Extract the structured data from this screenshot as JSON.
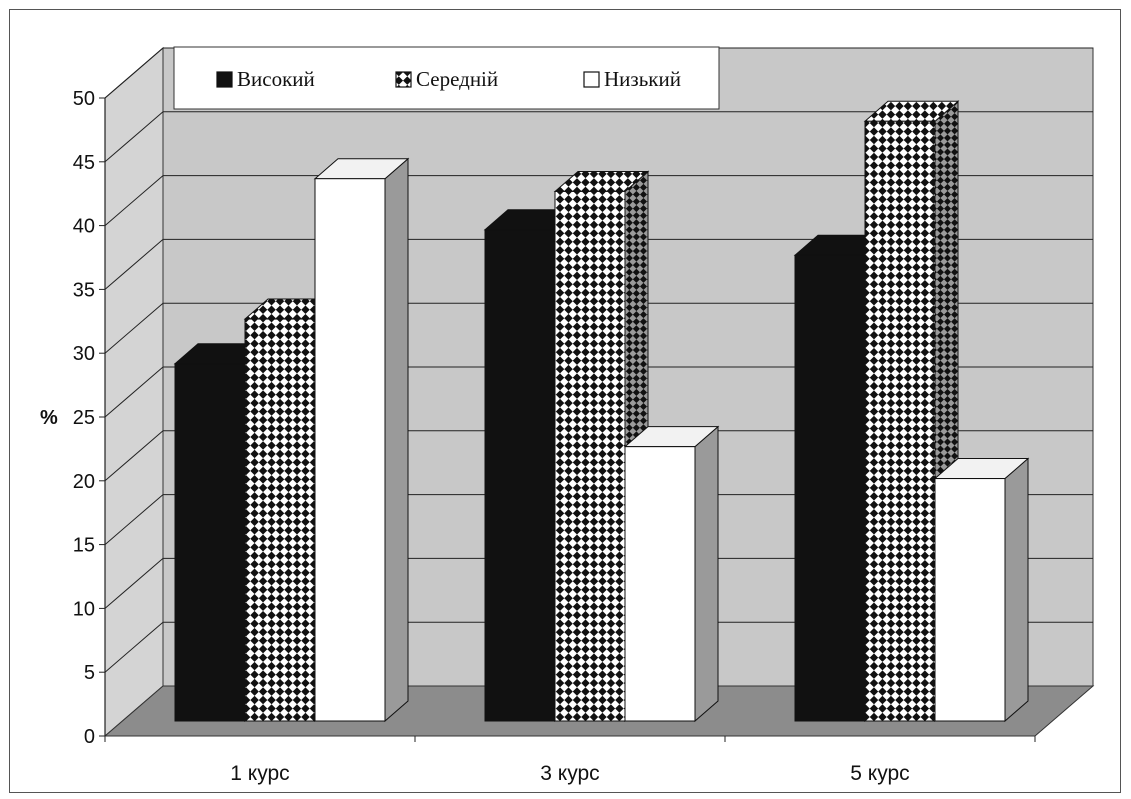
{
  "chart_data": {
    "type": "bar",
    "variant": "3d-clustered",
    "ylabel": "%",
    "ylim": [
      0,
      50
    ],
    "yticks": [
      "0",
      "5",
      "10",
      "15",
      "20",
      "25",
      "30",
      "35",
      "40",
      "45",
      "50"
    ],
    "categories": [
      "1 курс",
      "3 курс",
      "5 курс"
    ],
    "series": [
      {
        "name": "Високий",
        "values": [
          28,
          38.5,
          36.5
        ],
        "fill": "solid",
        "color": "#111111"
      },
      {
        "name": "Середній",
        "values": [
          31.5,
          41.5,
          47
        ],
        "fill": "checker",
        "color": "#111111"
      },
      {
        "name": "Низький",
        "values": [
          42.5,
          21.5,
          19
        ],
        "fill": "solid",
        "color": "#ffffff"
      }
    ],
    "legend_position": "top",
    "grid": true,
    "colors": {
      "wall": "#c8c8c8",
      "floor": "#8c8c8c",
      "side_wall": "#d4d4d4"
    }
  }
}
